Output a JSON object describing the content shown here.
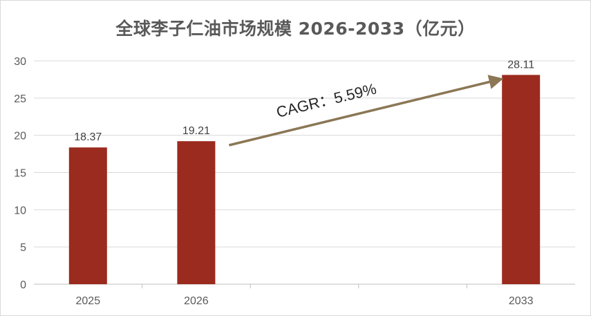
{
  "chart_data": {
    "type": "bar",
    "title": "全球李子仁油市场规模 2026-2033（亿元）",
    "categories": [
      "2025",
      "2026",
      "",
      "",
      "2033"
    ],
    "values": [
      18.37,
      19.21,
      null,
      null,
      28.11
    ],
    "data_labels": [
      "18.37",
      "19.21",
      "",
      "",
      "28.11"
    ],
    "ylim": [
      0,
      30
    ],
    "yticks": [
      "0",
      "5",
      "10",
      "15",
      "20",
      "25",
      "30"
    ],
    "xlabel": "",
    "ylabel": "",
    "grid": true,
    "legend": "none",
    "bar_color": "#9b2b1f",
    "annotation": {
      "text": "CAGR：5.59%",
      "arrow_color": "#8b7755"
    }
  }
}
